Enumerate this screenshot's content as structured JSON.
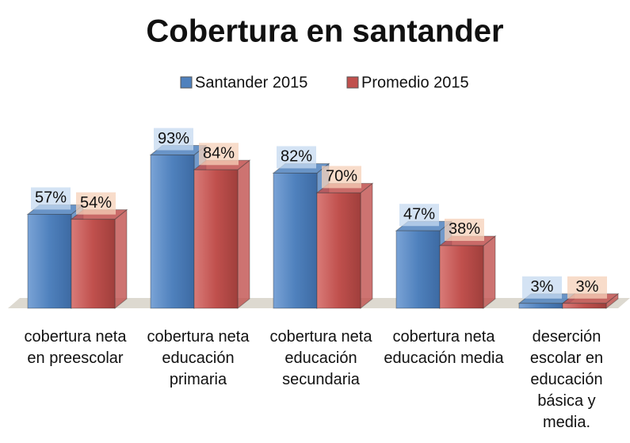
{
  "chart_data": {
    "type": "bar3d",
    "title": "Cobertura en santander",
    "categories": [
      "cobertura neta en preescolar",
      "cobertura neta educación primaria",
      "cobertura neta educación secundaria",
      "cobertura neta educación media",
      "deserción escolar en educación básica y media."
    ],
    "series": [
      {
        "name": "Santander 2015",
        "color": "#4f81bd",
        "values": [
          57,
          93,
          82,
          47,
          3
        ],
        "value_labels": [
          "57%",
          "93%",
          "82%",
          "47%",
          "3%"
        ]
      },
      {
        "name": "Promedio 2015",
        "color": "#c0504d",
        "values": [
          54,
          84,
          70,
          38,
          3
        ],
        "value_labels": [
          "54%",
          "84%",
          "70%",
          "38%",
          "3%"
        ]
      }
    ],
    "legend": "top"
  }
}
